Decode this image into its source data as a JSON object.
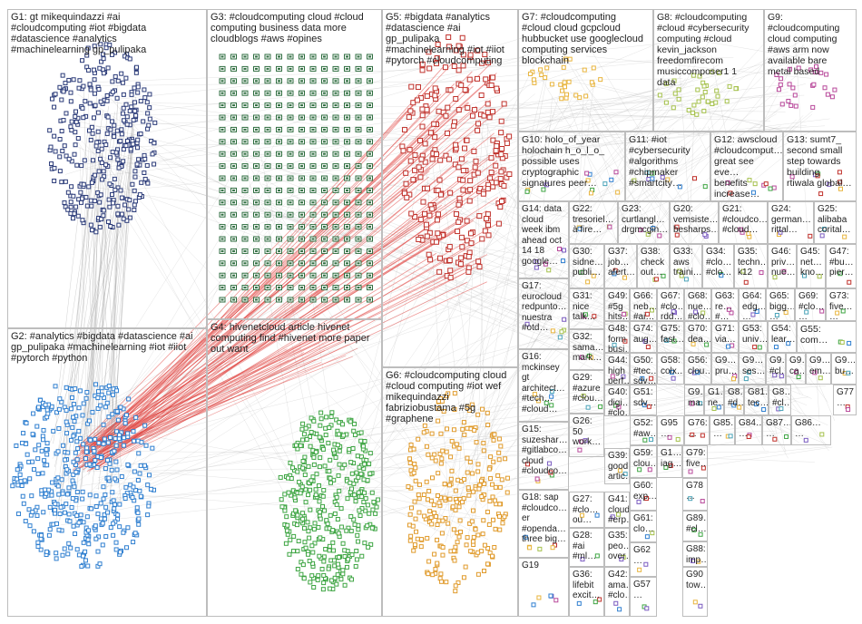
{
  "colors": {
    "edge_red": "#e0433f",
    "edge_gray": "#9a9a9a",
    "g1": "#2a3a78",
    "g2": "#2f7fd0",
    "g3": "#2f6e40",
    "g4": "#3ea543",
    "g5": "#c0312b",
    "g6": "#e09a2a",
    "g7": "#e8b43c",
    "g8": "#a4c04a",
    "g9": "#b8489a",
    "border": "#bdbdbd"
  },
  "groups": [
    {
      "id": "G1",
      "label": "G1: gt mikequindazzi #ai\n#cloudcomputing #iot #bigdata\n#datascience #analytics\n#machinelearning gp_pulipaka"
    },
    {
      "id": "G2",
      "label": "G2: #analytics #bigdata #datascience #ai\ngp_pulipaka #machinelearning #iot #iiot\n#pytorch #python"
    },
    {
      "id": "G3",
      "label": "G3: #cloudcomputing cloud #cloud\ncomputing business data more\ncloudblogs #aws #opines"
    },
    {
      "id": "G4",
      "label": "G4: hivenetcloud article hivenet\ncomputing find #hivenet more paper\nout want"
    },
    {
      "id": "G5",
      "label": "G5: #bigdata #analytics\n#datascience #ai\ngp_pulipaka\n#machinelearning #iot #iiot\n#pytorch #cloudcomputing"
    },
    {
      "id": "G6",
      "label": "G6: #cloudcomputing cloud\n#cloud computing #iot wef\nmikequindazzi\nfabriziobustama #5g\n#graphene"
    },
    {
      "id": "G7",
      "label": "G7: #cloudcomputing\n#cloud cloud gcpcloud\nhubbucket use googlecloud\ncomputing services\nblockchain"
    },
    {
      "id": "G8",
      "label": "G8: #cloudcomputing\n#cloud #cybersecurity\ncomputing #cloud\nkevin_jackson\nfreedomfirecom\nmusiccomposer1 1\ndata"
    },
    {
      "id": "G9",
      "label": "G9: #cloudcomputing\ncloud computing\n#aws arm now\navailable bare\nmetal based"
    },
    {
      "id": "G10",
      "label": "G10: holo_of_year\nholochain h_o_l_o_\npossible uses\ncryptographic\nsignatures peer…"
    },
    {
      "id": "G11",
      "label": "G11: #iot\n#cybersecurity\n#algorithms\n#chipmaker\n#smartcity…"
    },
    {
      "id": "G12",
      "label": "G12: awscloud\n#cloudcomput…\ngreat see eve…\nbenefits\nincrease…"
    },
    {
      "id": "G13",
      "label": "G13: sumt7_\nsecond small\nstep towards\nbuilding\nrtiwala global…"
    },
    {
      "id": "G14",
      "label": "G14: data\ncloud\nweek ibm\nahead oct\n14 18\ngoogle…"
    },
    {
      "id": "G22",
      "label": "G22:\ntresoriel…\nà fire…"
    },
    {
      "id": "G23",
      "label": "G23:\ncurtlangl…\ndrgmcgin…"
    },
    {
      "id": "G20",
      "label": "G20:\nvemsiste…\nbesharps…"
    },
    {
      "id": "G21",
      "label": "G21:\n#cloudco…\n#cloud…"
    },
    {
      "id": "G24",
      "label": "G24:\ngerman…\nrittal…"
    },
    {
      "id": "G25",
      "label": "G25:\nalibaba\ncorital…"
    },
    {
      "id": "G30",
      "label": "G30:\nsidne…\npubli…"
    },
    {
      "id": "G37",
      "label": "G37:\njob…\nafert…"
    },
    {
      "id": "G38",
      "label": "G38:\ncheck\nout…"
    },
    {
      "id": "G33",
      "label": "G33:\naws\ntraini…"
    },
    {
      "id": "G34",
      "label": "G34:\n#clo…\n#clo…"
    },
    {
      "id": "G35",
      "label": "G35:\ntechn…\nk12"
    },
    {
      "id": "G46",
      "label": "G46:\npriv…\nnue…"
    },
    {
      "id": "G45",
      "label": "G45:\nnet…\nkno…"
    },
    {
      "id": "G47",
      "label": "G47:\n#bu…\npier…"
    },
    {
      "id": "G17",
      "label": "G17:\neurocloud\nredpunto…\nnuestra\n#otd…"
    },
    {
      "id": "G49",
      "label": "G49:\n#5g\nhits…"
    },
    {
      "id": "G66",
      "label": "G66:\nneb…\n#ai…"
    },
    {
      "id": "G67",
      "label": "G67:\n#clo…\nrdd…"
    },
    {
      "id": "G68",
      "label": "G68:\nnue…\n#clo…"
    },
    {
      "id": "G63",
      "label": "G63:\nre…\n#…"
    },
    {
      "id": "G64",
      "label": "G64:\nedg…\n…"
    },
    {
      "id": "G65",
      "label": "G65:\nbigg…\n…"
    },
    {
      "id": "G69",
      "label": "G69:\n#clo…\n…"
    },
    {
      "id": "G73",
      "label": "G73:\nfive…\n…"
    },
    {
      "id": "G31",
      "label": "G31:\nnice\ntalk…"
    },
    {
      "id": "G48",
      "label": "G48:\nform\nbusi…"
    },
    {
      "id": "G74",
      "label": "G74:\naug…"
    },
    {
      "id": "G75",
      "label": "G75:\nfast…"
    },
    {
      "id": "G70",
      "label": "G70:\ndea…"
    },
    {
      "id": "G71",
      "label": "G71:\nvia…"
    },
    {
      "id": "G53",
      "label": "G53:\nuniv…"
    },
    {
      "id": "G54",
      "label": "G54:\nlear…"
    },
    {
      "id": "G55",
      "label": "G55:\ncom…"
    },
    {
      "id": "G32",
      "label": "G32:\nsama…\nmark…"
    },
    {
      "id": "G44",
      "label": "G44:\nhigh\nperf…"
    },
    {
      "id": "G50",
      "label": "G50:\n#tec…\nsdv…"
    },
    {
      "id": "G58",
      "label": "G58:\ncolx…"
    },
    {
      "id": "G56",
      "label": "G56:\nclou…"
    },
    {
      "id": "G9b",
      "label": "G9…\npru…"
    },
    {
      "id": "G9c",
      "label": "G9…\nses…"
    },
    {
      "id": "G9d",
      "label": "G9…\n#cl…"
    },
    {
      "id": "G9e",
      "label": "G9…\nca…"
    },
    {
      "id": "G9f",
      "label": "G9…\nem…"
    },
    {
      "id": "G9g",
      "label": "G9…\nbu…"
    },
    {
      "id": "G16",
      "label": "G16:\nmckinsey\ngt\narchitect…\n#tech…\n#cloud…"
    },
    {
      "id": "G29",
      "label": "G29:\n#azure\n#clou…"
    },
    {
      "id": "G51",
      "label": "G51:\nsdv…"
    },
    {
      "id": "G9h",
      "label": "G9…\nma…"
    },
    {
      "id": "G1x",
      "label": "G1…\nne…"
    },
    {
      "id": "G8x",
      "label": "G8…\n#d…"
    },
    {
      "id": "G81",
      "label": "G81…\ntec…"
    },
    {
      "id": "G8y",
      "label": "G8…\n#cl…"
    },
    {
      "id": "G77",
      "label": "G77\n…"
    },
    {
      "id": "G40",
      "label": "G40:\ndigi…\n#clo…"
    },
    {
      "id": "G52",
      "label": "G52:\n#aw…"
    },
    {
      "id": "G95",
      "label": "G95\n…"
    },
    {
      "id": "G76",
      "label": "G76:\n…"
    },
    {
      "id": "G85",
      "label": "G85…\n…"
    },
    {
      "id": "G84",
      "label": "G84…\n…"
    },
    {
      "id": "G87",
      "label": "G87…\n…"
    },
    {
      "id": "G86",
      "label": "G86…\n…"
    },
    {
      "id": "G15",
      "label": "G15:\nsuzeshar…\n#gitlabco…\ncloud\n#cloudco…"
    },
    {
      "id": "G26",
      "label": "G26:\n50\nwork…"
    },
    {
      "id": "G39",
      "label": "G39:\ngood\nartic…"
    },
    {
      "id": "G59",
      "label": "G59:\nclou…"
    },
    {
      "id": "G1y",
      "label": "G1…\niag…"
    },
    {
      "id": "G79",
      "label": "G79:\nfive…"
    },
    {
      "id": "G27",
      "label": "G27:\n#clo…\nou…"
    },
    {
      "id": "G60",
      "label": "G60:\nexp…"
    },
    {
      "id": "G78",
      "label": "G78\n…"
    },
    {
      "id": "G18",
      "label": "G18: sap\n#cloudco…\ner\n#openda…\nthree big…"
    },
    {
      "id": "G41",
      "label": "G41:\ncloud\n#erp…"
    },
    {
      "id": "G61",
      "label": "G61:\nclo…"
    },
    {
      "id": "G89",
      "label": "G89…\n#cl…"
    },
    {
      "id": "G28",
      "label": "G28:\n#ai\n#ml…"
    },
    {
      "id": "G35b",
      "label": "G35:\npeo…\nover…"
    },
    {
      "id": "G88",
      "label": "G88:\nimp…"
    },
    {
      "id": "G19",
      "label": "G19"
    },
    {
      "id": "G62",
      "label": "G62\n…"
    },
    {
      "id": "G36",
      "label": "G36:\nlifebit\nexcit…"
    },
    {
      "id": "G42",
      "label": "G42:\nama…\n#clo…"
    },
    {
      "id": "G57",
      "label": "G57\n…"
    },
    {
      "id": "G90",
      "label": "G90\ntow…"
    }
  ]
}
